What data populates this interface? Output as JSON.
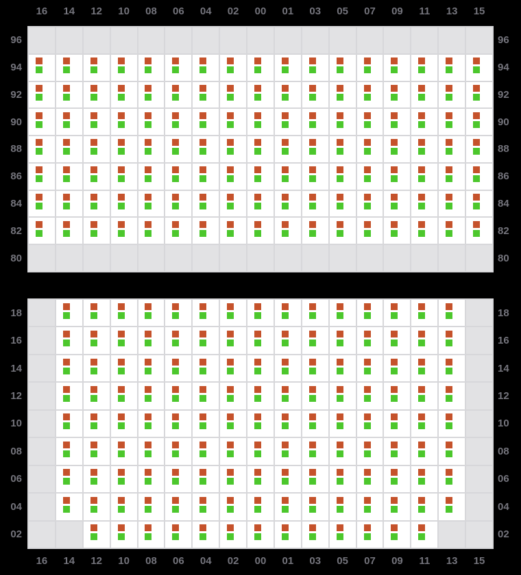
{
  "colors": {
    "background": "#000000",
    "cell_bg": "#ffffff",
    "empty_cell_bg": "#e2e2e4",
    "grid_line": "#d7d7da",
    "label_text": "#74747c",
    "orange_marker": "#c5522b",
    "green_marker": "#4cc72c"
  },
  "chart_data": {
    "type": "heatmap",
    "columns": [
      "16",
      "14",
      "12",
      "10",
      "08",
      "06",
      "04",
      "02",
      "00",
      "01",
      "03",
      "05",
      "07",
      "09",
      "11",
      "13",
      "15"
    ],
    "cell_value_legend": "1 = cell contains orange+green marker pair, 0 = empty gray cell",
    "panels": [
      {
        "id": "top",
        "rows": [
          {
            "label": "96",
            "cells": "00000000000000000"
          },
          {
            "label": "94",
            "cells": "11111111111111111"
          },
          {
            "label": "92",
            "cells": "11111111111111111"
          },
          {
            "label": "90",
            "cells": "11111111111111111"
          },
          {
            "label": "88",
            "cells": "11111111111111111"
          },
          {
            "label": "86",
            "cells": "11111111111111111"
          },
          {
            "label": "84",
            "cells": "11111111111111111"
          },
          {
            "label": "82",
            "cells": "11111111111111111"
          },
          {
            "label": "80",
            "cells": "00000000000000000"
          }
        ]
      },
      {
        "id": "bottom",
        "rows": [
          {
            "label": "18",
            "cells": "01111111111111110"
          },
          {
            "label": "16",
            "cells": "01111111111111110"
          },
          {
            "label": "14",
            "cells": "01111111111111110"
          },
          {
            "label": "12",
            "cells": "01111111111111110"
          },
          {
            "label": "10",
            "cells": "01111111111111110"
          },
          {
            "label": "08",
            "cells": "01111111111111110"
          },
          {
            "label": "06",
            "cells": "01111111111111110"
          },
          {
            "label": "04",
            "cells": "01111111111111110"
          },
          {
            "label": "02",
            "cells": "00111111111111100"
          }
        ]
      }
    ]
  }
}
